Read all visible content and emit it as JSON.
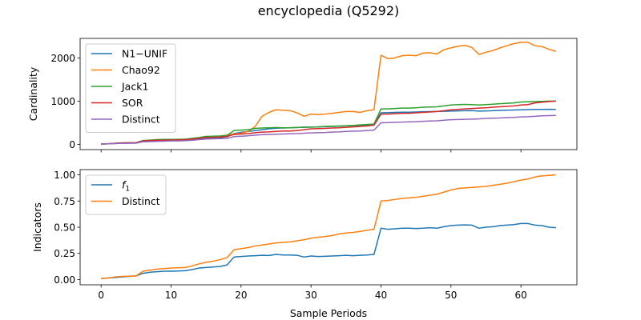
{
  "figure_title": "encyclopedia (Q5292)",
  "colors": {
    "blue": "#1f77b4",
    "orange": "#ff7f0e",
    "green": "#2ca02c",
    "red": "#d62728",
    "purple": "#9467bd"
  },
  "chart_data": [
    {
      "type": "line",
      "title": "",
      "xlabel": "",
      "ylabel": "Cardinality",
      "xlim": [
        -3,
        68
      ],
      "ylim": [
        -120,
        2450
      ],
      "x_ticks": [
        0,
        10,
        20,
        30,
        40,
        50,
        60
      ],
      "x_tick_labels_visible": false,
      "y_ticks": [
        0,
        1000,
        2000
      ],
      "y_tick_labels": [
        "0",
        "1000",
        "2000"
      ],
      "grid": false,
      "legend_position": "top-left",
      "x": [
        0,
        1,
        2,
        3,
        4,
        5,
        6,
        7,
        8,
        9,
        10,
        11,
        12,
        13,
        14,
        15,
        16,
        17,
        18,
        19,
        20,
        21,
        22,
        23,
        24,
        25,
        26,
        27,
        28,
        29,
        30,
        31,
        32,
        33,
        34,
        35,
        36,
        37,
        38,
        39,
        40,
        41,
        42,
        43,
        44,
        45,
        46,
        47,
        48,
        49,
        50,
        51,
        52,
        53,
        54,
        55,
        56,
        57,
        58,
        59,
        60,
        61,
        62,
        63,
        64,
        65
      ],
      "series": [
        {
          "name": "N1−UNIF",
          "color": "#1f77b4",
          "values": [
            10,
            15,
            20,
            25,
            28,
            30,
            70,
            80,
            85,
            90,
            95,
            100,
            105,
            115,
            130,
            150,
            155,
            160,
            175,
            250,
            280,
            300,
            320,
            340,
            360,
            375,
            380,
            385,
            390,
            395,
            400,
            405,
            410,
            415,
            420,
            430,
            435,
            440,
            450,
            465,
            730,
            735,
            740,
            745,
            745,
            750,
            755,
            758,
            760,
            765,
            770,
            775,
            780,
            782,
            770,
            775,
            780,
            785,
            790,
            795,
            800,
            805,
            808,
            810,
            812,
            810
          ]
        },
        {
          "name": "Chao92",
          "color": "#ff7f0e",
          "values": [
            10,
            15,
            25,
            35,
            38,
            40,
            85,
            90,
            100,
            105,
            110,
            112,
            115,
            125,
            145,
            170,
            180,
            195,
            215,
            240,
            260,
            300,
            410,
            650,
            740,
            800,
            790,
            780,
            730,
            650,
            700,
            690,
            700,
            720,
            740,
            760,
            760,
            740,
            780,
            800,
            2060,
            1980,
            2000,
            2050,
            2060,
            2050,
            2110,
            2120,
            2090,
            2190,
            2230,
            2270,
            2290,
            2240,
            2080,
            2130,
            2170,
            2230,
            2280,
            2330,
            2360,
            2360,
            2280,
            2260,
            2200,
            2150
          ]
        },
        {
          "name": "Jack1",
          "color": "#2ca02c",
          "values": [
            10,
            15,
            25,
            35,
            38,
            40,
            90,
            100,
            110,
            115,
            115,
            118,
            120,
            140,
            160,
            185,
            190,
            195,
            205,
            320,
            330,
            340,
            370,
            380,
            385,
            390,
            385,
            385,
            390,
            400,
            400,
            405,
            415,
            420,
            425,
            430,
            440,
            450,
            460,
            470,
            820,
            820,
            830,
            840,
            840,
            845,
            860,
            865,
            870,
            890,
            910,
            920,
            925,
            920,
            910,
            920,
            930,
            940,
            950,
            960,
            980,
            985,
            990,
            995,
            1000,
            1000
          ]
        },
        {
          "name": "SOR",
          "color": "#d62728",
          "values": [
            10,
            15,
            25,
            35,
            38,
            40,
            80,
            90,
            95,
            100,
            100,
            105,
            110,
            125,
            140,
            160,
            165,
            170,
            185,
            230,
            240,
            250,
            270,
            285,
            290,
            300,
            310,
            310,
            320,
            340,
            360,
            365,
            370,
            380,
            385,
            395,
            405,
            415,
            425,
            445,
            700,
            700,
            710,
            720,
            720,
            730,
            740,
            750,
            760,
            780,
            800,
            810,
            820,
            830,
            840,
            845,
            860,
            870,
            880,
            890,
            910,
            920,
            960,
            975,
            990,
            1000
          ]
        },
        {
          "name": "Distinct",
          "color": "#9467bd",
          "values": [
            10,
            15,
            20,
            25,
            28,
            30,
            60,
            65,
            70,
            75,
            80,
            82,
            85,
            95,
            110,
            125,
            130,
            135,
            140,
            180,
            190,
            200,
            215,
            225,
            230,
            235,
            240,
            245,
            250,
            260,
            265,
            270,
            275,
            285,
            290,
            300,
            305,
            310,
            320,
            330,
            500,
            505,
            510,
            515,
            520,
            525,
            535,
            540,
            545,
            560,
            570,
            575,
            580,
            585,
            590,
            600,
            605,
            610,
            620,
            625,
            635,
            640,
            650,
            660,
            665,
            670
          ]
        }
      ]
    },
    {
      "type": "line",
      "title": "",
      "xlabel": "Sample Periods",
      "ylabel": "Indicators",
      "xlim": [
        -3,
        68
      ],
      "ylim": [
        -0.05,
        1.05
      ],
      "x_ticks": [
        0,
        10,
        20,
        30,
        40,
        50,
        60
      ],
      "x_tick_labels": [
        "0",
        "10",
        "20",
        "30",
        "40",
        "50",
        "60"
      ],
      "y_ticks": [
        0.0,
        0.25,
        0.5,
        0.75,
        1.0
      ],
      "y_tick_labels": [
        "0.00",
        "0.25",
        "0.50",
        "0.75",
        "1.00"
      ],
      "grid": false,
      "legend_position": "top-left",
      "x": [
        0,
        1,
        2,
        3,
        4,
        5,
        6,
        7,
        8,
        9,
        10,
        11,
        12,
        13,
        14,
        15,
        16,
        17,
        18,
        19,
        20,
        21,
        22,
        23,
        24,
        25,
        26,
        27,
        28,
        29,
        30,
        31,
        32,
        33,
        34,
        35,
        36,
        37,
        38,
        39,
        40,
        41,
        42,
        43,
        44,
        45,
        46,
        47,
        48,
        49,
        50,
        51,
        52,
        53,
        54,
        55,
        56,
        57,
        58,
        59,
        60,
        61,
        62,
        63,
        64,
        65
      ],
      "series": [
        {
          "name": "f",
          "name_subscript": "1",
          "color": "#1f77b4",
          "values": [
            0.01,
            0.015,
            0.02,
            0.025,
            0.03,
            0.035,
            0.06,
            0.07,
            0.075,
            0.08,
            0.08,
            0.082,
            0.085,
            0.095,
            0.11,
            0.115,
            0.12,
            0.125,
            0.14,
            0.215,
            0.22,
            0.225,
            0.228,
            0.232,
            0.23,
            0.24,
            0.235,
            0.235,
            0.232,
            0.215,
            0.225,
            0.22,
            0.222,
            0.225,
            0.228,
            0.232,
            0.228,
            0.232,
            0.235,
            0.24,
            0.49,
            0.48,
            0.485,
            0.49,
            0.49,
            0.488,
            0.49,
            0.495,
            0.49,
            0.505,
            0.515,
            0.52,
            0.522,
            0.52,
            0.49,
            0.5,
            0.505,
            0.515,
            0.52,
            0.525,
            0.535,
            0.535,
            0.52,
            0.515,
            0.5,
            0.495
          ]
        },
        {
          "name": "Distinct",
          "color": "#ff7f0e",
          "values": [
            0.01,
            0.015,
            0.025,
            0.03,
            0.032,
            0.035,
            0.08,
            0.09,
            0.1,
            0.105,
            0.11,
            0.112,
            0.115,
            0.13,
            0.15,
            0.165,
            0.175,
            0.19,
            0.21,
            0.285,
            0.295,
            0.305,
            0.32,
            0.33,
            0.34,
            0.35,
            0.355,
            0.36,
            0.37,
            0.38,
            0.395,
            0.405,
            0.41,
            0.42,
            0.435,
            0.445,
            0.45,
            0.46,
            0.47,
            0.48,
            0.75,
            0.755,
            0.765,
            0.775,
            0.78,
            0.785,
            0.795,
            0.805,
            0.815,
            0.835,
            0.855,
            0.87,
            0.875,
            0.88,
            0.885,
            0.89,
            0.9,
            0.91,
            0.92,
            0.935,
            0.95,
            0.96,
            0.98,
            0.99,
            0.995,
            1.0
          ]
        }
      ]
    }
  ]
}
